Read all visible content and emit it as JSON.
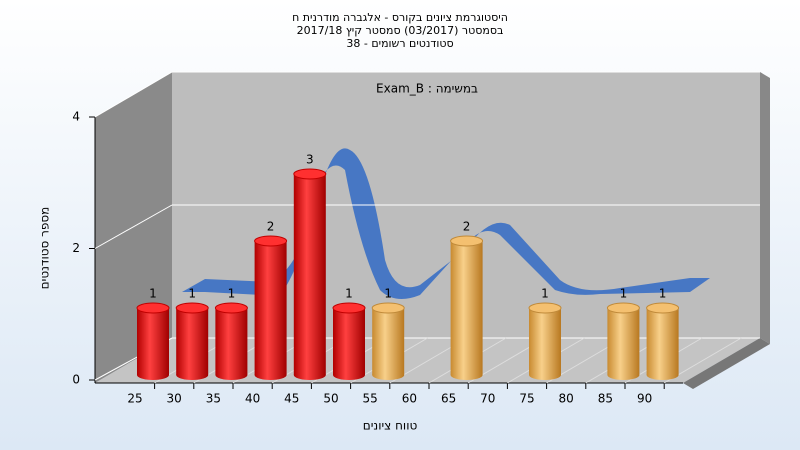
{
  "chart_data": {
    "type": "bar3d",
    "title": [
      "היסטוגרמת ציונים בקורס - אלגברה מודרנית ח",
      "בסמסטר  (03/2017)  סמסטר קיץ 2017/18",
      "סטודנטים רשומים - 38"
    ],
    "annotation": "Exam_B : במשימה",
    "x_label": "טווח ציונים",
    "y_label": "מספר סטודנטים",
    "categories": [
      "25",
      "30",
      "35",
      "40",
      "45",
      "50",
      "55",
      "60",
      "65",
      "70",
      "75",
      "80",
      "85",
      "90"
    ],
    "values": [
      1,
      1,
      1,
      2,
      3,
      1,
      1,
      0,
      2,
      0,
      1,
      0,
      1,
      1
    ],
    "colors": [
      "red",
      "red",
      "red",
      "red",
      "red",
      "red",
      "orange",
      "orange",
      "orange",
      "orange",
      "orange",
      "orange",
      "orange",
      "orange"
    ],
    "ylim": [
      0,
      4
    ],
    "yticks": [
      0,
      2,
      4
    ],
    "grid": true
  }
}
